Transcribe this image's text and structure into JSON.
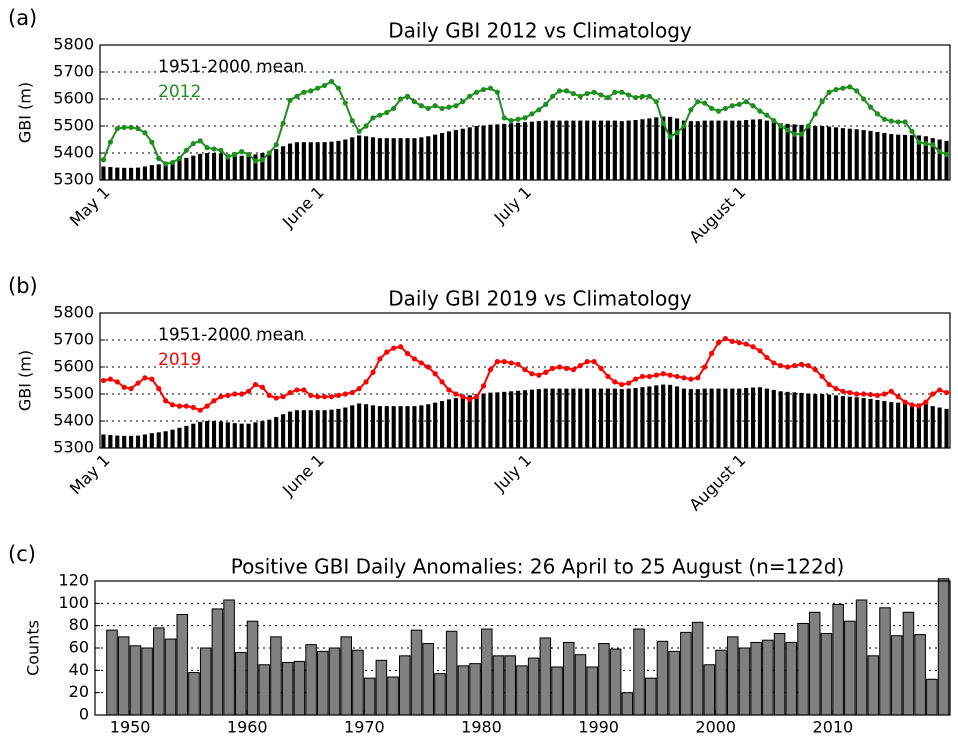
{
  "chart_data": [
    {
      "type": "combo",
      "panel_label": "(a)",
      "title": "Daily GBI 2012 vs Climatology",
      "y_label": "GBI (m)",
      "categories": [
        "May 1",
        null,
        null,
        null,
        null,
        null,
        null,
        null,
        null,
        null,
        null,
        null,
        null,
        null,
        null,
        null,
        null,
        null,
        null,
        null,
        null,
        null,
        null,
        null,
        null,
        null,
        null,
        null,
        null,
        null,
        null,
        "June 1",
        null,
        null,
        null,
        null,
        null,
        null,
        null,
        null,
        null,
        null,
        null,
        null,
        null,
        null,
        null,
        null,
        null,
        null,
        null,
        null,
        null,
        null,
        null,
        null,
        null,
        null,
        null,
        null,
        null,
        "July 1",
        null,
        null,
        null,
        null,
        null,
        null,
        null,
        null,
        null,
        null,
        null,
        null,
        null,
        null,
        null,
        null,
        null,
        null,
        null,
        null,
        null,
        null,
        null,
        null,
        null,
        null,
        null,
        null,
        null,
        null,
        "August 1",
        null,
        null,
        null,
        null,
        null,
        null,
        null,
        null,
        null,
        null,
        null,
        null,
        null,
        null,
        null,
        null,
        null,
        null,
        null,
        null,
        null,
        null,
        null,
        null,
        null,
        null,
        null,
        null,
        null,
        null
      ],
      "series": [
        {
          "name": "1951-2000 mean",
          "type": "bar",
          "color": "#000000",
          "values": [
            5350,
            5348,
            5346,
            5345,
            5345,
            5346,
            5350,
            5355,
            5358,
            5362,
            5368,
            5375,
            5382,
            5390,
            5397,
            5400,
            5400,
            5398,
            5395,
            5392,
            5390,
            5390,
            5395,
            5400,
            5405,
            5415,
            5425,
            5435,
            5440,
            5440,
            5440,
            5440,
            5440,
            5442,
            5445,
            5450,
            5458,
            5465,
            5462,
            5458,
            5455,
            5455,
            5455,
            5455,
            5455,
            5455,
            5458,
            5462,
            5468,
            5474,
            5480,
            5485,
            5490,
            5495,
            5500,
            5502,
            5505,
            5506,
            5508,
            5510,
            5512,
            5514,
            5516,
            5518,
            5520,
            5520,
            5520,
            5520,
            5520,
            5520,
            5520,
            5520,
            5520,
            5520,
            5520,
            5518,
            5520,
            5522,
            5525,
            5528,
            5532,
            5535,
            5534,
            5528,
            5520,
            5518,
            5518,
            5520,
            5520,
            5520,
            5520,
            5520,
            5520,
            5522,
            5524,
            5525,
            5520,
            5515,
            5510,
            5508,
            5506,
            5504,
            5502,
            5500,
            5500,
            5498,
            5495,
            5492,
            5490,
            5488,
            5485,
            5482,
            5478,
            5474,
            5470,
            5468,
            5467,
            5466,
            5465,
            5462,
            5455,
            5450,
            5445
          ]
        },
        {
          "name": "2012",
          "type": "line",
          "color": "#1f8f1f",
          "values": [
            5375,
            5440,
            5490,
            5495,
            5495,
            5490,
            5475,
            5440,
            5380,
            5360,
            5365,
            5380,
            5410,
            5435,
            5445,
            5420,
            5415,
            5410,
            5385,
            5395,
            5405,
            5395,
            5370,
            5375,
            5400,
            5430,
            5510,
            5595,
            5610,
            5625,
            5630,
            5640,
            5650,
            5665,
            5640,
            5585,
            5520,
            5480,
            5500,
            5530,
            5540,
            5550,
            5565,
            5600,
            5610,
            5590,
            5575,
            5565,
            5575,
            5565,
            5570,
            5575,
            5590,
            5610,
            5625,
            5635,
            5640,
            5625,
            5530,
            5520,
            5525,
            5530,
            5545,
            5560,
            5580,
            5610,
            5630,
            5630,
            5620,
            5610,
            5620,
            5625,
            5615,
            5605,
            5625,
            5625,
            5615,
            5605,
            5610,
            5610,
            5590,
            5510,
            5460,
            5475,
            5500,
            5560,
            5590,
            5585,
            5565,
            5555,
            5565,
            5575,
            5580,
            5590,
            5575,
            5555,
            5540,
            5520,
            5500,
            5485,
            5470,
            5470,
            5500,
            5545,
            5590,
            5625,
            5635,
            5640,
            5645,
            5630,
            5600,
            5570,
            5545,
            5525,
            5518,
            5515,
            5515,
            5480,
            5440,
            5435,
            5430,
            5405,
            5395
          ]
        }
      ],
      "ylim": [
        5300,
        5800
      ],
      "yticks": [
        5300,
        5400,
        5500,
        5600,
        5700,
        5800
      ],
      "grid": true,
      "legend": "upper left"
    },
    {
      "type": "combo",
      "panel_label": "(b)",
      "title": "Daily GBI 2019 vs Climatology",
      "y_label": "GBI (m)",
      "categories": [
        "May 1",
        null,
        null,
        null,
        null,
        null,
        null,
        null,
        null,
        null,
        null,
        null,
        null,
        null,
        null,
        null,
        null,
        null,
        null,
        null,
        null,
        null,
        null,
        null,
        null,
        null,
        null,
        null,
        null,
        null,
        null,
        "June 1",
        null,
        null,
        null,
        null,
        null,
        null,
        null,
        null,
        null,
        null,
        null,
        null,
        null,
        null,
        null,
        null,
        null,
        null,
        null,
        null,
        null,
        null,
        null,
        null,
        null,
        null,
        null,
        null,
        null,
        "July 1",
        null,
        null,
        null,
        null,
        null,
        null,
        null,
        null,
        null,
        null,
        null,
        null,
        null,
        null,
        null,
        null,
        null,
        null,
        null,
        null,
        null,
        null,
        null,
        null,
        null,
        null,
        null,
        null,
        null,
        null,
        "August 1",
        null,
        null,
        null,
        null,
        null,
        null,
        null,
        null,
        null,
        null,
        null,
        null,
        null,
        null,
        null,
        null,
        null,
        null,
        null,
        null,
        null,
        null,
        null,
        null,
        null,
        null,
        null,
        null,
        null,
        null
      ],
      "series": [
        {
          "name": "1951-2000 mean",
          "type": "bar",
          "color": "#000000",
          "values": [
            5350,
            5348,
            5346,
            5345,
            5345,
            5346,
            5350,
            5355,
            5358,
            5362,
            5368,
            5375,
            5382,
            5390,
            5397,
            5400,
            5400,
            5398,
            5395,
            5392,
            5390,
            5390,
            5395,
            5400,
            5405,
            5415,
            5425,
            5435,
            5440,
            5440,
            5440,
            5440,
            5440,
            5442,
            5445,
            5450,
            5458,
            5465,
            5462,
            5458,
            5455,
            5455,
            5455,
            5455,
            5455,
            5455,
            5458,
            5462,
            5468,
            5474,
            5480,
            5485,
            5490,
            5495,
            5500,
            5502,
            5505,
            5506,
            5508,
            5510,
            5512,
            5514,
            5516,
            5518,
            5520,
            5520,
            5520,
            5520,
            5520,
            5520,
            5520,
            5520,
            5520,
            5520,
            5520,
            5518,
            5520,
            5522,
            5525,
            5528,
            5532,
            5535,
            5534,
            5528,
            5520,
            5518,
            5518,
            5520,
            5520,
            5520,
            5520,
            5520,
            5520,
            5522,
            5524,
            5525,
            5520,
            5515,
            5510,
            5508,
            5506,
            5504,
            5502,
            5500,
            5500,
            5498,
            5495,
            5492,
            5490,
            5488,
            5485,
            5482,
            5478,
            5474,
            5470,
            5468,
            5467,
            5466,
            5465,
            5462,
            5455,
            5450,
            5445
          ]
        },
        {
          "name": "2019",
          "type": "line",
          "color": "#ff0000",
          "values": [
            5550,
            5555,
            5545,
            5525,
            5520,
            5540,
            5560,
            5555,
            5520,
            5475,
            5460,
            5455,
            5455,
            5450,
            5440,
            5455,
            5475,
            5490,
            5495,
            5500,
            5500,
            5510,
            5535,
            5525,
            5495,
            5485,
            5490,
            5505,
            5515,
            5515,
            5495,
            5490,
            5490,
            5490,
            5495,
            5500,
            5505,
            5520,
            5545,
            5580,
            5630,
            5655,
            5670,
            5675,
            5650,
            5630,
            5615,
            5600,
            5575,
            5545,
            5515,
            5500,
            5490,
            5480,
            5490,
            5530,
            5590,
            5620,
            5620,
            5615,
            5610,
            5590,
            5575,
            5570,
            5580,
            5595,
            5600,
            5595,
            5590,
            5605,
            5620,
            5620,
            5595,
            5565,
            5545,
            5535,
            5540,
            5555,
            5565,
            5565,
            5570,
            5575,
            5570,
            5565,
            5560,
            5555,
            5560,
            5600,
            5650,
            5690,
            5705,
            5695,
            5690,
            5685,
            5675,
            5660,
            5635,
            5615,
            5605,
            5600,
            5605,
            5610,
            5605,
            5590,
            5565,
            5535,
            5520,
            5510,
            5505,
            5500,
            5500,
            5498,
            5495,
            5500,
            5510,
            5490,
            5470,
            5460,
            5455,
            5470,
            5500,
            5515,
            5505
          ]
        }
      ],
      "ylim": [
        5300,
        5800
      ],
      "yticks": [
        5300,
        5400,
        5500,
        5600,
        5700,
        5800
      ],
      "grid": true,
      "legend": "upper left"
    },
    {
      "type": "bar",
      "panel_label": "(c)",
      "title": "Positive GBI Daily Anomalies: 26 April to 25 August (n=122d)",
      "y_label": "Counts",
      "x": [
        1948,
        1949,
        1950,
        1951,
        1952,
        1953,
        1954,
        1955,
        1956,
        1957,
        1958,
        1959,
        1960,
        1961,
        1962,
        1963,
        1964,
        1965,
        1966,
        1967,
        1968,
        1969,
        1970,
        1971,
        1972,
        1973,
        1974,
        1975,
        1976,
        1977,
        1978,
        1979,
        1980,
        1981,
        1982,
        1983,
        1984,
        1985,
        1986,
        1987,
        1988,
        1989,
        1990,
        1991,
        1992,
        1993,
        1994,
        1995,
        1996,
        1997,
        1998,
        1999,
        2000,
        2001,
        2002,
        2003,
        2004,
        2005,
        2006,
        2007,
        2008,
        2009,
        2010,
        2011,
        2012,
        2013,
        2014,
        2015,
        2016,
        2017,
        2018,
        2019
      ],
      "values": [
        76,
        70,
        62,
        60,
        78,
        68,
        90,
        38,
        60,
        95,
        103,
        56,
        84,
        45,
        70,
        47,
        48,
        63,
        57,
        60,
        70,
        58,
        33,
        49,
        34,
        53,
        76,
        64,
        37,
        75,
        44,
        46,
        77,
        53,
        53,
        44,
        51,
        69,
        43,
        65,
        54,
        43,
        64,
        59,
        20,
        77,
        33,
        66,
        57,
        74,
        83,
        45,
        58,
        70,
        60,
        65,
        67,
        73,
        65,
        82,
        92,
        73,
        99,
        84,
        103,
        53,
        96,
        71,
        92,
        72,
        32,
        122
      ],
      "color": "#808080",
      "xlim": [
        1947,
        2020
      ],
      "xticks": [
        1950,
        1960,
        1970,
        1980,
        1990,
        2000,
        2010
      ],
      "ylim": [
        0,
        120
      ],
      "yticks": [
        0,
        20,
        40,
        60,
        80,
        100,
        120
      ],
      "grid": true
    }
  ]
}
